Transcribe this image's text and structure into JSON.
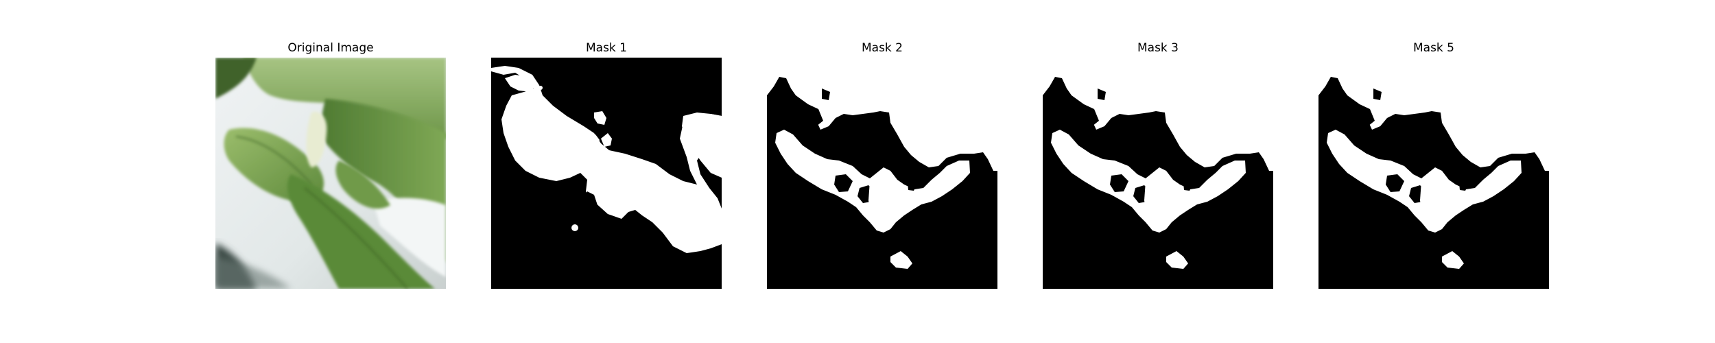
{
  "figure": {
    "panels": [
      {
        "title": "Original Image",
        "kind": "photo"
      },
      {
        "title": "Mask 1",
        "kind": "mask"
      },
      {
        "title": "Mask 2",
        "kind": "mask"
      },
      {
        "title": "Mask 3",
        "kind": "mask"
      },
      {
        "title": "Mask 5",
        "kind": "mask"
      }
    ]
  },
  "colors": {
    "mask_foreground": "#ffffff",
    "mask_background": "#000000",
    "leaf_dark": "#4f7a35",
    "leaf_light": "#8fb464",
    "backdrop": "#e7ecec"
  }
}
